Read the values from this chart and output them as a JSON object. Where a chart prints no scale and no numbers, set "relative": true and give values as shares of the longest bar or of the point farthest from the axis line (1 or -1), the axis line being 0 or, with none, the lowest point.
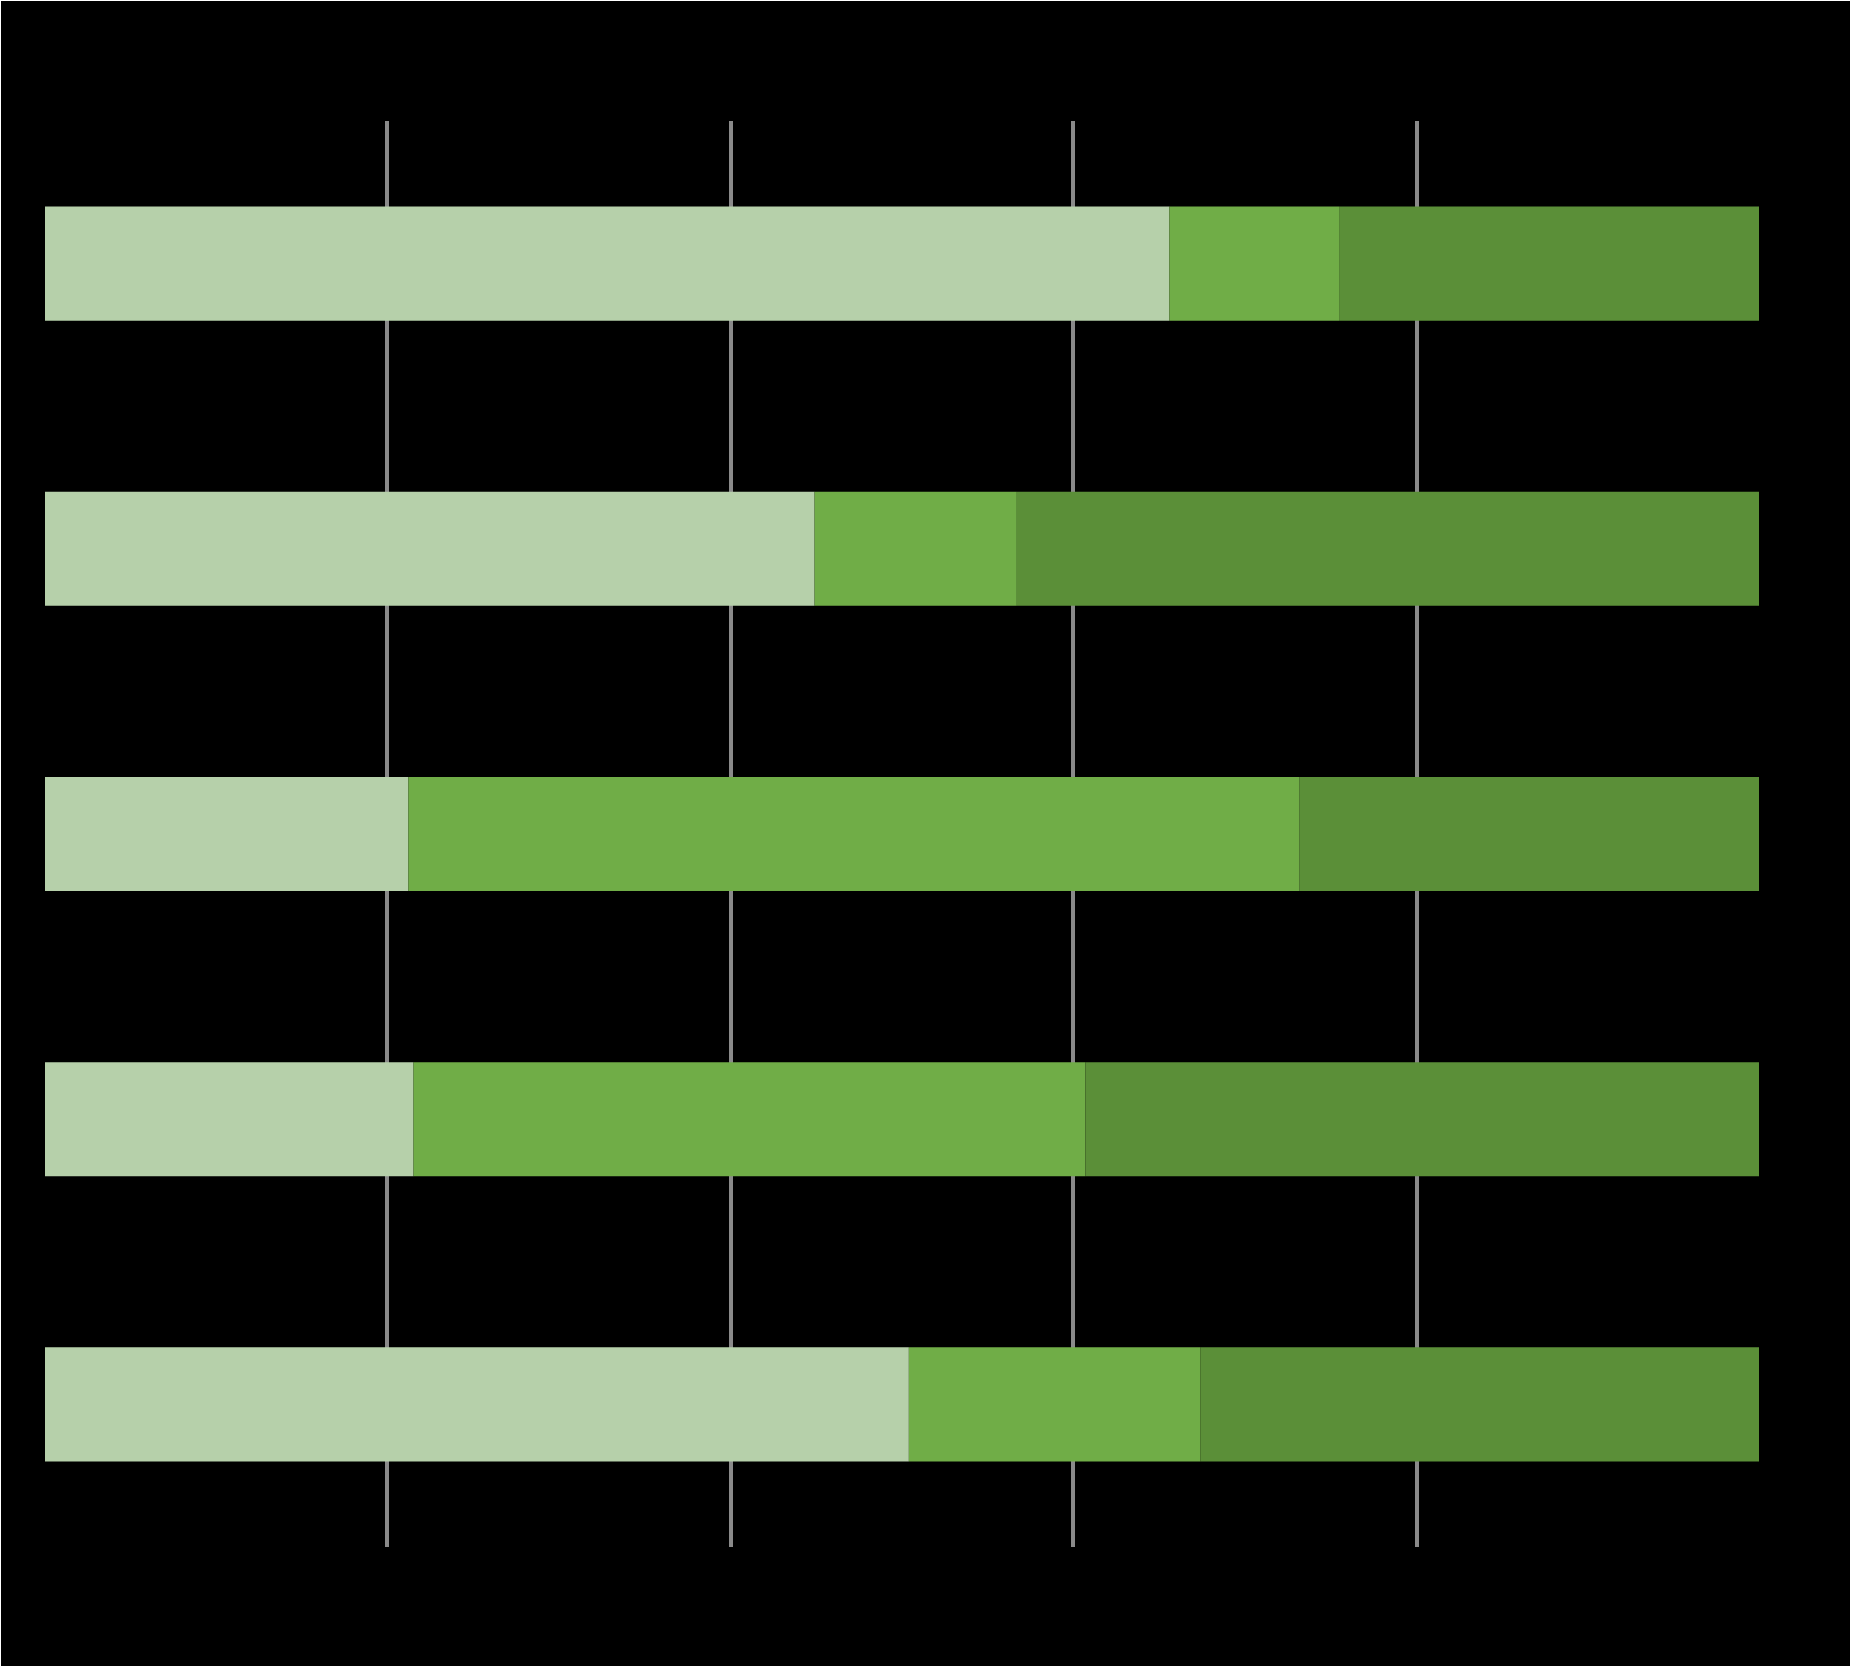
{
  "chart_data": {
    "type": "bar",
    "orientation": "horizontal",
    "stacked": true,
    "relative": true,
    "grid": "x",
    "categories": [
      null,
      null,
      null,
      null,
      null
    ],
    "series": [
      {
        "color": "#b6d0aa",
        "values": [
          0.656,
          0.449,
          0.212,
          0.215,
          0.504
        ]
      },
      {
        "color": "#70ad47",
        "values": [
          0.099,
          0.118,
          0.52,
          0.392,
          0.17
        ]
      },
      {
        "color": "#5b8f38",
        "values": [
          0.245,
          0.433,
          0.268,
          0.393,
          0.326
        ]
      }
    ]
  }
}
